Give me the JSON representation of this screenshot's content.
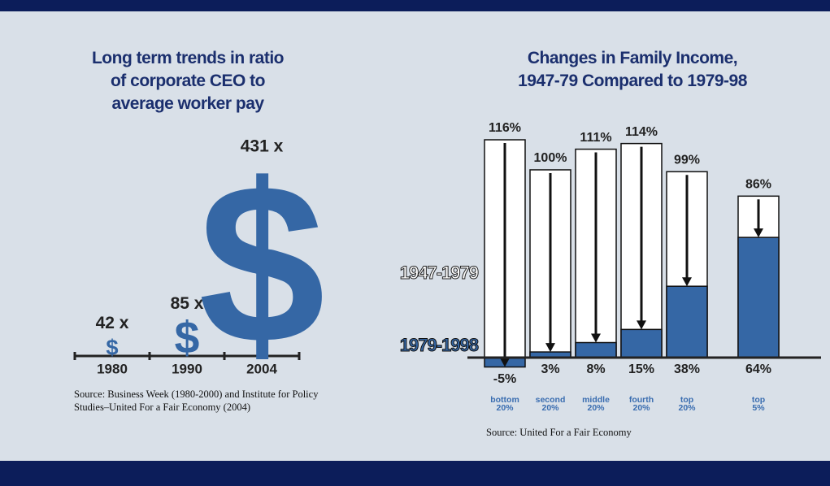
{
  "chart_data": [
    {
      "type": "pictogram",
      "title": "Long term trends in ratio of corporate CEO to average worker pay",
      "categories": [
        "1980",
        "1990",
        "2004"
      ],
      "values": [
        42,
        85,
        431
      ],
      "value_labels": [
        "42 x",
        "85 x",
        "431 x"
      ],
      "symbol": "$",
      "color": "#3567a5",
      "source": "Source: Business Week (1980-2000) and Institute for Policy Studies–United For a Fair Economy (2004)"
    },
    {
      "type": "bar",
      "title": "Changes in Family Income, 1947-79 Compared to 1979-98",
      "categories": [
        "bottom 20%",
        "second 20%",
        "middle 20%",
        "fourth 20%",
        "top 20%",
        "top 5%"
      ],
      "series": [
        {
          "name": "1947-1979",
          "color": "#ffffff",
          "values": [
            116,
            100,
            111,
            114,
            99,
            86
          ],
          "value_labels": [
            "116%",
            "100%",
            "111%",
            "114%",
            "99%",
            "86%"
          ]
        },
        {
          "name": "1979-1998",
          "color": "#3567a5",
          "values": [
            -5,
            3,
            8,
            15,
            38,
            64
          ],
          "value_labels": [
            "-5%",
            "3%",
            "8%",
            "15%",
            "38%",
            "64%"
          ]
        }
      ],
      "source": "Source: United For a Fair Economy"
    }
  ]
}
